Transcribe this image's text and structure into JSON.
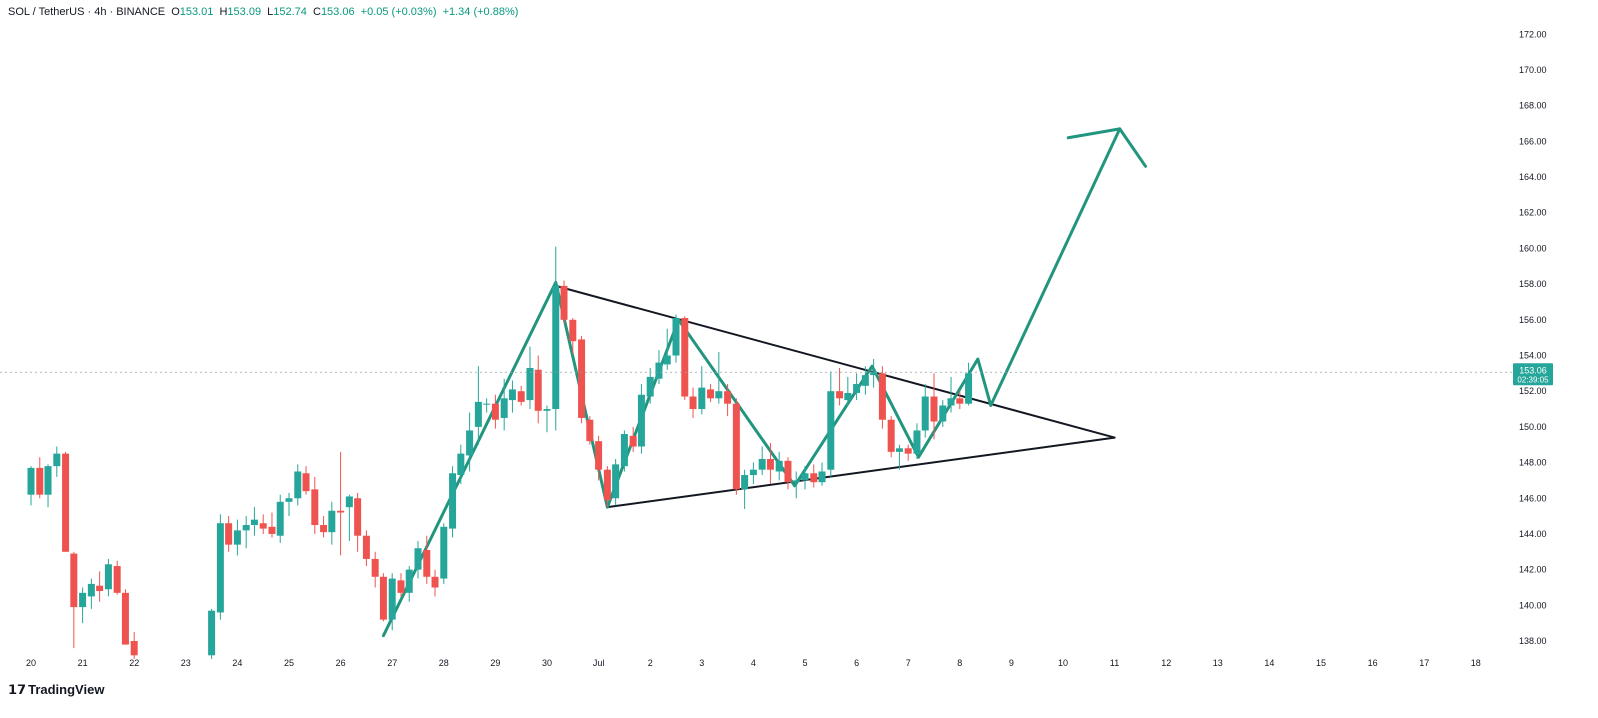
{
  "header": {
    "symbol": "SOL / TetherUS · 4h · BINANCE",
    "o_label": "O",
    "o_value": "153.01",
    "h_label": "H",
    "h_value": "153.09",
    "l_label": "L",
    "l_value": "152.74",
    "c_label": "C",
    "c_value": "153.06",
    "change": "+0.05 (+0.03%)",
    "change2": "+1.34 (+0.88%)"
  },
  "logo": {
    "icon": "tradingview-logo-icon",
    "text": "TradingView"
  },
  "price_label": {
    "price": "153.06",
    "countdown": "02:39:05"
  },
  "colors": {
    "up": "#26a69a",
    "down": "#ef5350",
    "drawing": "#22957e",
    "trendline": "#131722",
    "grid_text": "#131722"
  },
  "chart_data": {
    "type": "candlestick",
    "title": "SOL / TetherUS · 4h · BINANCE",
    "y_ticks": [
      138,
      140,
      142,
      144,
      146,
      148,
      150,
      152,
      154,
      156,
      158,
      160,
      162,
      164,
      166,
      168,
      170,
      172
    ],
    "y_tick_labels": [
      "138.00",
      "140.00",
      "142.00",
      "144.00",
      "146.00",
      "148.00",
      "150.00",
      "152.00",
      "154.00",
      "156.00",
      "158.00",
      "160.00",
      "162.00",
      "164.00",
      "166.00",
      "168.00",
      "170.00",
      "172.00"
    ],
    "ylim": [
      136.6,
      172.8
    ],
    "x_ticks": [
      {
        "d": 0,
        "label": "20"
      },
      {
        "d": 1,
        "label": "21"
      },
      {
        "d": 2,
        "label": "22"
      },
      {
        "d": 3,
        "label": "23"
      },
      {
        "d": 4,
        "label": "24"
      },
      {
        "d": 5,
        "label": "25"
      },
      {
        "d": 6,
        "label": "26"
      },
      {
        "d": 7,
        "label": "27"
      },
      {
        "d": 8,
        "label": "28"
      },
      {
        "d": 9,
        "label": "29"
      },
      {
        "d": 10,
        "label": "30"
      },
      {
        "d": 11,
        "label": "Jul"
      },
      {
        "d": 12,
        "label": "2"
      },
      {
        "d": 13,
        "label": "3"
      },
      {
        "d": 14,
        "label": "4"
      },
      {
        "d": 15,
        "label": "5"
      },
      {
        "d": 16,
        "label": "6"
      },
      {
        "d": 17,
        "label": "7"
      },
      {
        "d": 18,
        "label": "8"
      },
      {
        "d": 19,
        "label": "9"
      },
      {
        "d": 20,
        "label": "10"
      },
      {
        "d": 21,
        "label": "11"
      },
      {
        "d": 22,
        "label": "12"
      },
      {
        "d": 23,
        "label": "13"
      },
      {
        "d": 24,
        "label": "14"
      },
      {
        "d": 25,
        "label": "15"
      },
      {
        "d": 26,
        "label": "16"
      },
      {
        "d": 27,
        "label": "17"
      },
      {
        "d": 28,
        "label": "18"
      }
    ],
    "candles": [
      {
        "t": 0.0,
        "o": 146.2,
        "h": 147.8,
        "l": 145.6,
        "c": 147.7
      },
      {
        "t": 0.17,
        "o": 147.7,
        "h": 148.3,
        "l": 146.0,
        "c": 146.2
      },
      {
        "t": 0.33,
        "o": 146.2,
        "h": 147.9,
        "l": 145.5,
        "c": 147.8
      },
      {
        "t": 0.5,
        "o": 147.8,
        "h": 148.9,
        "l": 147.2,
        "c": 148.5
      },
      {
        "t": 0.67,
        "o": 148.5,
        "h": 148.6,
        "l": 143.0,
        "c": 143.0
      },
      {
        "t": 0.83,
        "o": 142.9,
        "h": 143.0,
        "l": 137.6,
        "c": 139.9
      },
      {
        "t": 1.0,
        "o": 139.9,
        "h": 141.0,
        "l": 139.0,
        "c": 140.7
      },
      {
        "t": 1.17,
        "o": 140.5,
        "h": 141.5,
        "l": 139.8,
        "c": 141.2
      },
      {
        "t": 1.33,
        "o": 141.1,
        "h": 141.9,
        "l": 140.2,
        "c": 140.8
      },
      {
        "t": 1.5,
        "o": 140.9,
        "h": 142.6,
        "l": 140.5,
        "c": 142.3
      },
      {
        "t": 1.67,
        "o": 142.2,
        "h": 142.5,
        "l": 140.6,
        "c": 140.7
      },
      {
        "t": 1.83,
        "o": 140.7,
        "h": 140.9,
        "l": 137.8,
        "c": 137.8
      },
      {
        "t": 2.0,
        "o": 138.0,
        "h": 138.5,
        "l": 137.0,
        "c": 137.2
      },
      {
        "t": 3.5,
        "o": 137.2,
        "h": 139.8,
        "l": 137.0,
        "c": 139.7
      },
      {
        "t": 3.67,
        "o": 139.6,
        "h": 145.1,
        "l": 139.2,
        "c": 144.6
      },
      {
        "t": 3.83,
        "o": 144.6,
        "h": 145.0,
        "l": 143.0,
        "c": 143.4
      },
      {
        "t": 4.0,
        "o": 143.4,
        "h": 144.8,
        "l": 142.8,
        "c": 144.2
      },
      {
        "t": 4.17,
        "o": 144.2,
        "h": 145.0,
        "l": 143.2,
        "c": 144.5
      },
      {
        "t": 4.33,
        "o": 144.5,
        "h": 145.5,
        "l": 143.9,
        "c": 144.8
      },
      {
        "t": 4.5,
        "o": 144.6,
        "h": 145.1,
        "l": 144.0,
        "c": 144.3
      },
      {
        "t": 4.67,
        "o": 144.4,
        "h": 145.2,
        "l": 143.8,
        "c": 144.0
      },
      {
        "t": 4.83,
        "o": 143.9,
        "h": 146.2,
        "l": 143.5,
        "c": 145.8
      },
      {
        "t": 5.0,
        "o": 145.8,
        "h": 146.3,
        "l": 145.0,
        "c": 146.0
      },
      {
        "t": 5.17,
        "o": 146.0,
        "h": 147.9,
        "l": 145.6,
        "c": 147.5
      },
      {
        "t": 5.33,
        "o": 147.4,
        "h": 147.8,
        "l": 146.2,
        "c": 146.4
      },
      {
        "t": 5.5,
        "o": 146.5,
        "h": 147.2,
        "l": 144.0,
        "c": 144.5
      },
      {
        "t": 5.67,
        "o": 144.5,
        "h": 145.0,
        "l": 143.8,
        "c": 144.1
      },
      {
        "t": 5.83,
        "o": 144.1,
        "h": 145.8,
        "l": 143.4,
        "c": 145.3
      },
      {
        "t": 6.0,
        "o": 145.3,
        "h": 148.6,
        "l": 142.8,
        "c": 145.2
      },
      {
        "t": 6.17,
        "o": 145.5,
        "h": 146.2,
        "l": 143.6,
        "c": 146.1
      },
      {
        "t": 6.33,
        "o": 146.0,
        "h": 146.3,
        "l": 143.0,
        "c": 143.9
      },
      {
        "t": 6.5,
        "o": 143.9,
        "h": 144.2,
        "l": 142.2,
        "c": 142.6
      },
      {
        "t": 6.67,
        "o": 142.6,
        "h": 143.0,
        "l": 141.0,
        "c": 141.6
      },
      {
        "t": 6.83,
        "o": 141.6,
        "h": 141.8,
        "l": 139.1,
        "c": 139.2
      },
      {
        "t": 7.0,
        "o": 139.2,
        "h": 141.8,
        "l": 138.6,
        "c": 141.5
      },
      {
        "t": 7.17,
        "o": 141.4,
        "h": 141.8,
        "l": 140.5,
        "c": 140.7
      },
      {
        "t": 7.33,
        "o": 140.7,
        "h": 142.2,
        "l": 140.2,
        "c": 142.0
      },
      {
        "t": 7.5,
        "o": 142.0,
        "h": 143.6,
        "l": 141.5,
        "c": 143.2
      },
      {
        "t": 7.67,
        "o": 143.1,
        "h": 143.9,
        "l": 141.2,
        "c": 141.6
      },
      {
        "t": 7.83,
        "o": 141.6,
        "h": 142.0,
        "l": 140.5,
        "c": 141.0
      },
      {
        "t": 8.0,
        "o": 141.5,
        "h": 144.6,
        "l": 141.2,
        "c": 144.4
      },
      {
        "t": 8.17,
        "o": 144.3,
        "h": 147.8,
        "l": 143.8,
        "c": 147.4
      },
      {
        "t": 8.33,
        "o": 147.3,
        "h": 149.0,
        "l": 146.8,
        "c": 148.5
      },
      {
        "t": 8.5,
        "o": 148.4,
        "h": 150.8,
        "l": 147.5,
        "c": 149.8
      },
      {
        "t": 8.67,
        "o": 150.0,
        "h": 153.4,
        "l": 149.0,
        "c": 151.4
      },
      {
        "t": 8.83,
        "o": 151.3,
        "h": 151.6,
        "l": 150.8,
        "c": 151.3
      },
      {
        "t": 9.0,
        "o": 151.3,
        "h": 151.8,
        "l": 149.9,
        "c": 150.4
      },
      {
        "t": 9.17,
        "o": 150.5,
        "h": 152.7,
        "l": 149.8,
        "c": 151.6
      },
      {
        "t": 9.33,
        "o": 151.5,
        "h": 152.6,
        "l": 150.8,
        "c": 152.1
      },
      {
        "t": 9.5,
        "o": 152.0,
        "h": 152.3,
        "l": 151.2,
        "c": 151.4
      },
      {
        "t": 9.67,
        "o": 151.5,
        "h": 154.5,
        "l": 151.0,
        "c": 153.3
      },
      {
        "t": 9.83,
        "o": 153.2,
        "h": 154.0,
        "l": 150.2,
        "c": 150.9
      },
      {
        "t": 10.0,
        "o": 150.9,
        "h": 151.2,
        "l": 149.7,
        "c": 151.0
      },
      {
        "t": 10.17,
        "o": 151.0,
        "h": 160.1,
        "l": 149.8,
        "c": 157.9
      },
      {
        "t": 10.33,
        "o": 157.9,
        "h": 158.2,
        "l": 155.8,
        "c": 156.0
      },
      {
        "t": 10.5,
        "o": 156.0,
        "h": 156.1,
        "l": 154.1,
        "c": 154.8
      },
      {
        "t": 10.67,
        "o": 154.9,
        "h": 155.1,
        "l": 150.2,
        "c": 150.5
      },
      {
        "t": 10.83,
        "o": 150.4,
        "h": 150.6,
        "l": 149.0,
        "c": 149.2
      },
      {
        "t": 11.0,
        "o": 149.2,
        "h": 149.5,
        "l": 147.0,
        "c": 147.6
      },
      {
        "t": 11.17,
        "o": 147.6,
        "h": 147.8,
        "l": 145.5,
        "c": 145.9
      },
      {
        "t": 11.33,
        "o": 146.0,
        "h": 148.2,
        "l": 145.6,
        "c": 147.9
      },
      {
        "t": 11.5,
        "o": 147.8,
        "h": 149.8,
        "l": 147.5,
        "c": 149.6
      },
      {
        "t": 11.67,
        "o": 149.5,
        "h": 150.0,
        "l": 148.6,
        "c": 148.9
      },
      {
        "t": 11.83,
        "o": 148.9,
        "h": 152.4,
        "l": 148.5,
        "c": 151.8
      },
      {
        "t": 12.0,
        "o": 151.7,
        "h": 153.3,
        "l": 151.3,
        "c": 152.8
      },
      {
        "t": 12.17,
        "o": 152.7,
        "h": 154.3,
        "l": 152.4,
        "c": 153.6
      },
      {
        "t": 12.33,
        "o": 153.5,
        "h": 155.5,
        "l": 153.2,
        "c": 154.0
      },
      {
        "t": 12.5,
        "o": 154.0,
        "h": 156.3,
        "l": 153.6,
        "c": 156.1
      },
      {
        "t": 12.67,
        "o": 156.1,
        "h": 156.2,
        "l": 151.5,
        "c": 151.7
      },
      {
        "t": 12.83,
        "o": 151.7,
        "h": 152.2,
        "l": 150.5,
        "c": 151.0
      },
      {
        "t": 13.0,
        "o": 151.0,
        "h": 153.4,
        "l": 150.7,
        "c": 152.2
      },
      {
        "t": 13.17,
        "o": 152.1,
        "h": 152.4,
        "l": 151.4,
        "c": 151.6
      },
      {
        "t": 13.33,
        "o": 151.6,
        "h": 154.2,
        "l": 151.3,
        "c": 152.0
      },
      {
        "t": 13.5,
        "o": 152.0,
        "h": 152.4,
        "l": 150.6,
        "c": 151.3
      },
      {
        "t": 13.67,
        "o": 151.3,
        "h": 151.6,
        "l": 146.2,
        "c": 146.5
      },
      {
        "t": 13.83,
        "o": 146.5,
        "h": 147.6,
        "l": 145.4,
        "c": 147.3
      },
      {
        "t": 14.0,
        "o": 147.3,
        "h": 148.0,
        "l": 146.8,
        "c": 147.6
      },
      {
        "t": 14.17,
        "o": 147.6,
        "h": 148.9,
        "l": 147.3,
        "c": 148.2
      },
      {
        "t": 14.33,
        "o": 148.2,
        "h": 149.1,
        "l": 146.8,
        "c": 147.6
      },
      {
        "t": 14.5,
        "o": 147.5,
        "h": 148.6,
        "l": 147.0,
        "c": 148.1
      },
      {
        "t": 14.67,
        "o": 148.1,
        "h": 148.3,
        "l": 146.5,
        "c": 146.9
      },
      {
        "t": 14.83,
        "o": 146.9,
        "h": 147.5,
        "l": 146.0,
        "c": 147.0
      },
      {
        "t": 15.0,
        "o": 147.0,
        "h": 147.8,
        "l": 146.5,
        "c": 147.4
      },
      {
        "t": 15.17,
        "o": 147.4,
        "h": 147.9,
        "l": 146.6,
        "c": 146.9
      },
      {
        "t": 15.33,
        "o": 146.9,
        "h": 148.0,
        "l": 146.7,
        "c": 147.5
      },
      {
        "t": 15.5,
        "o": 147.6,
        "h": 153.1,
        "l": 147.2,
        "c": 152.0
      },
      {
        "t": 15.67,
        "o": 152.0,
        "h": 153.3,
        "l": 151.2,
        "c": 151.6
      },
      {
        "t": 15.83,
        "o": 151.5,
        "h": 152.8,
        "l": 151.2,
        "c": 151.9
      },
      {
        "t": 16.0,
        "o": 151.9,
        "h": 153.0,
        "l": 151.5,
        "c": 152.4
      },
      {
        "t": 16.17,
        "o": 152.3,
        "h": 153.4,
        "l": 151.8,
        "c": 152.9
      },
      {
        "t": 16.33,
        "o": 152.9,
        "h": 153.8,
        "l": 152.2,
        "c": 153.1
      },
      {
        "t": 16.5,
        "o": 153.0,
        "h": 153.4,
        "l": 149.9,
        "c": 150.4
      },
      {
        "t": 16.67,
        "o": 150.4,
        "h": 150.6,
        "l": 148.3,
        "c": 148.6
      },
      {
        "t": 16.83,
        "o": 148.6,
        "h": 149.0,
        "l": 147.6,
        "c": 148.8
      },
      {
        "t": 17.0,
        "o": 148.8,
        "h": 149.0,
        "l": 148.1,
        "c": 148.5
      },
      {
        "t": 17.17,
        "o": 148.5,
        "h": 150.2,
        "l": 148.2,
        "c": 149.8
      },
      {
        "t": 17.33,
        "o": 149.8,
        "h": 152.4,
        "l": 149.4,
        "c": 151.7
      },
      {
        "t": 17.5,
        "o": 151.7,
        "h": 153.0,
        "l": 149.3,
        "c": 150.3
      },
      {
        "t": 17.67,
        "o": 150.3,
        "h": 151.5,
        "l": 150.0,
        "c": 151.2
      },
      {
        "t": 17.83,
        "o": 151.2,
        "h": 152.8,
        "l": 150.8,
        "c": 151.6
      },
      {
        "t": 18.0,
        "o": 151.6,
        "h": 152.0,
        "l": 151.0,
        "c": 151.3
      },
      {
        "t": 18.17,
        "o": 151.3,
        "h": 153.6,
        "l": 151.2,
        "c": 153.0
      }
    ],
    "lines": [
      {
        "id": "upper-trendline",
        "color": "#131722",
        "width": 2,
        "points": [
          [
            10.17,
            157.9
          ],
          [
            21.0,
            149.4
          ]
        ]
      },
      {
        "id": "lower-trendline",
        "color": "#131722",
        "width": 2,
        "points": [
          [
            11.17,
            145.5
          ],
          [
            21.0,
            149.4
          ]
        ]
      },
      {
        "id": "zigzag-path",
        "color": "#22957e",
        "width": 3,
        "points": [
          [
            6.83,
            138.3
          ],
          [
            10.17,
            158.1
          ],
          [
            11.17,
            145.5
          ],
          [
            12.55,
            156.0
          ],
          [
            14.8,
            146.7
          ],
          [
            16.3,
            153.4
          ],
          [
            17.2,
            148.3
          ],
          [
            18.35,
            153.8
          ],
          [
            18.6,
            151.2
          ],
          [
            21.1,
            166.7
          ]
        ]
      }
    ],
    "arrowhead": {
      "tip": [
        21.1,
        166.7
      ],
      "left": [
        20.1,
        166.2
      ],
      "right": [
        21.6,
        164.6
      ]
    },
    "last_price": 153.06
  }
}
